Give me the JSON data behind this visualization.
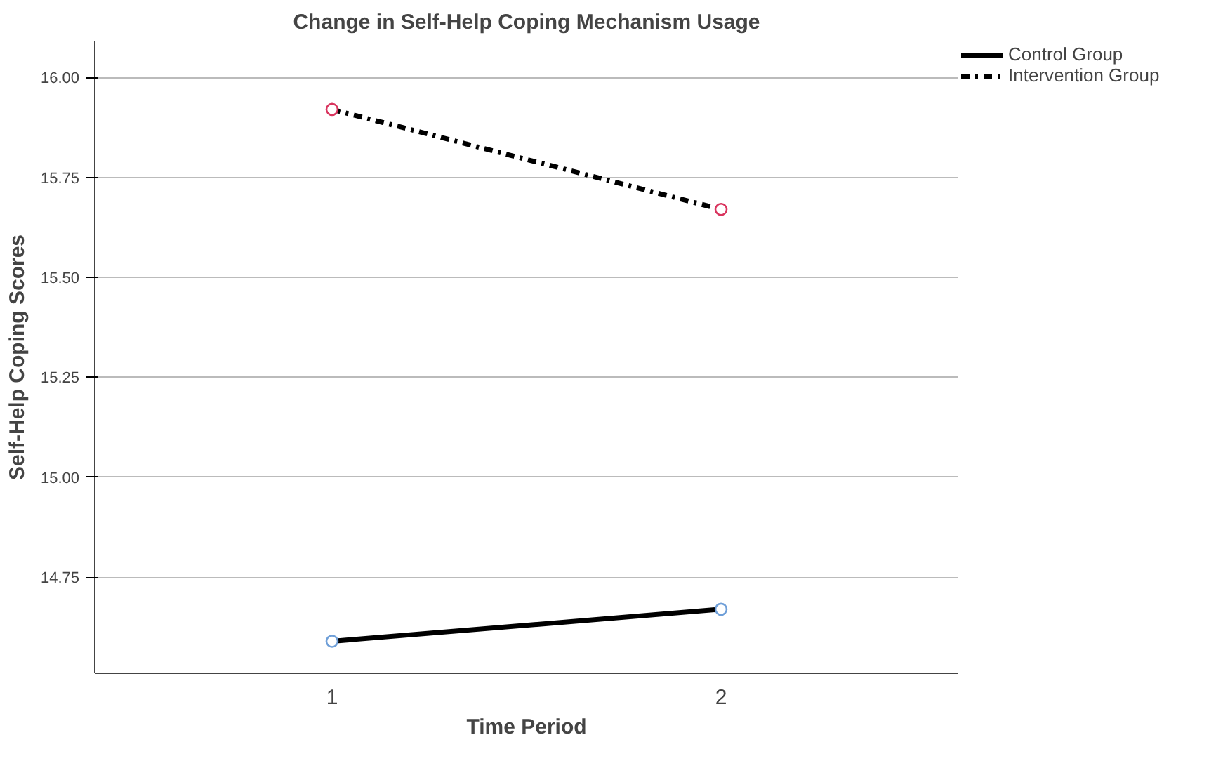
{
  "chart_data": {
    "type": "line",
    "title": "Change in Self-Help Coping Mechanism Usage",
    "xlabel": "Time Period",
    "ylabel": "Self-Help Coping Scores",
    "x": [
      1,
      2
    ],
    "xlim": [
      0.39,
      2.61
    ],
    "xticks": [
      1,
      2
    ],
    "ylim": [
      14.51,
      16.09
    ],
    "yticks": [
      {
        "value": 14.75,
        "label": "14.75"
      },
      {
        "value": 15.0,
        "label": "15.00"
      },
      {
        "value": 15.25,
        "label": "15.25"
      },
      {
        "value": 15.5,
        "label": "15.50"
      },
      {
        "value": 15.75,
        "label": "15.75"
      },
      {
        "value": 16.0,
        "label": "16.00"
      }
    ],
    "series": [
      {
        "name": "Control Group",
        "color": "#000000",
        "colors": [
          "#6f9fd8",
          "#6f9fd8"
        ],
        "line_style": "solid",
        "values": [
          14.59,
          14.67
        ]
      },
      {
        "name": "Intervention Group",
        "color": "#000000",
        "colors": [
          "#d9345e",
          "#d9345e"
        ],
        "line_style": "dashdot",
        "values": [
          15.92,
          15.67
        ]
      }
    ],
    "marker": "circle",
    "grid": "y",
    "legend": "top right"
  }
}
